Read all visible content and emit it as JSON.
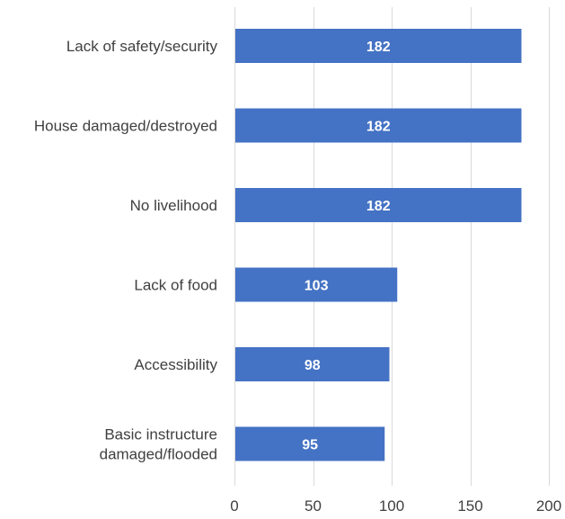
{
  "chart_data": {
    "type": "bar",
    "orientation": "horizontal",
    "categories": [
      [
        "Lack of safety/security"
      ],
      [
        "House damaged/destroyed"
      ],
      [
        "No livelihood"
      ],
      [
        "Lack of food"
      ],
      [
        "Accessibility"
      ],
      [
        "Basic instructure",
        "damaged/flooded"
      ]
    ],
    "values": [
      182,
      182,
      182,
      103,
      98,
      95
    ],
    "data_labels": [
      "182",
      "182",
      "182",
      "103",
      "98",
      "95"
    ],
    "xlim": [
      0,
      200
    ],
    "xticks": [
      0,
      50,
      100,
      150,
      200
    ],
    "xtick_labels": [
      "0",
      "50",
      "100",
      "150",
      "200"
    ],
    "grid": true,
    "legend": "none",
    "bar_color": "#4472C4",
    "grid_color": "#D9D9D9",
    "text_color": "#404040",
    "title": "",
    "xlabel": "",
    "ylabel": ""
  }
}
